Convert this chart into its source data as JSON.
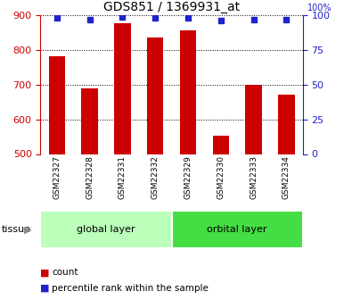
{
  "title": "GDS851 / 1369931_at",
  "categories": [
    "GSM22327",
    "GSM22328",
    "GSM22331",
    "GSM22332",
    "GSM22329",
    "GSM22330",
    "GSM22333",
    "GSM22334"
  ],
  "count_values": [
    783,
    690,
    878,
    835,
    858,
    552,
    700,
    672
  ],
  "percentile_values": [
    98,
    97,
    99,
    98,
    98,
    96,
    97,
    97
  ],
  "ylim_left": [
    500,
    900
  ],
  "ylim_right": [
    0,
    100
  ],
  "yticks_left": [
    500,
    600,
    700,
    800,
    900
  ],
  "yticks_right": [
    0,
    25,
    50,
    75,
    100
  ],
  "bar_color": "#cc0000",
  "dot_color": "#2222cc",
  "tissue_groups": [
    {
      "label": "global layer",
      "color_light": "#ccffcc",
      "color_dark": "#55ee55",
      "count": 4
    },
    {
      "label": "orbital layer",
      "color_light": "#55ee55",
      "color_dark": "#55ee55",
      "count": 4
    }
  ],
  "tissue_label": "tissue",
  "legend_count_label": "count",
  "legend_percentile_label": "percentile rank within the sample",
  "left_axis_color": "#cc0000",
  "right_axis_color": "#2222cc",
  "bg_color": "#ffffff",
  "xlabels_bg": "#cccccc",
  "bar_width": 0.5,
  "right_axis_label": "100%"
}
